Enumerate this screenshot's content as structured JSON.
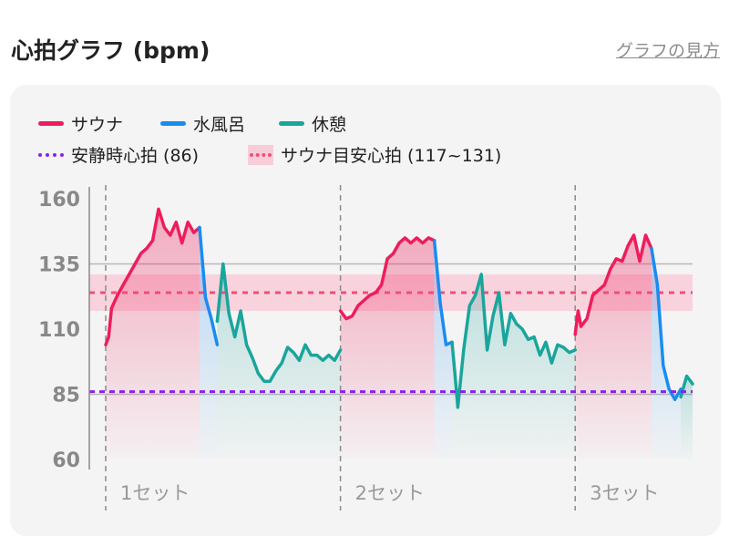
{
  "header": {
    "title": "心拍グラフ (bpm)",
    "help_link": "グラフの見方"
  },
  "colors": {
    "sauna": "#ee1d5b",
    "cold_bath": "#1a8cf0",
    "rest": "#1aa59c",
    "resting_hr": "#8a1ff0",
    "target_line": "#ee4f7a",
    "target_band": "#f8cdd8",
    "card_bg": "#f4f4f4",
    "axis": "#888888",
    "gridline": "#b8b8b8"
  },
  "legend": {
    "sauna": "サウナ",
    "cold_bath": "水風呂",
    "rest": "休憩",
    "resting_hr": "安静時心拍 (86)",
    "target_band": "サウナ目安心拍 (117~131)"
  },
  "chart_data": {
    "type": "line",
    "title": "心拍グラフ (bpm)",
    "ylim": [
      55,
      165
    ],
    "yticks": [
      160,
      135,
      110,
      85,
      60
    ],
    "gridlines": [
      135,
      85
    ],
    "x_range": [
      0,
      100
    ],
    "set_dividers": [
      0,
      40,
      80
    ],
    "set_labels": [
      {
        "label": "1セット",
        "x": 0
      },
      {
        "label": "2セット",
        "x": 40
      },
      {
        "label": "3セット",
        "x": 80
      }
    ],
    "resting_hr": 86,
    "target_band": [
      117,
      131
    ],
    "target_line": 124,
    "series": [
      {
        "name": "サウナ",
        "phase": "sauna",
        "x": [
          0,
          0.5,
          1,
          2,
          3,
          4,
          5,
          6,
          7,
          8,
          9,
          10,
          11,
          12,
          13,
          14,
          15,
          16
        ],
        "y": [
          104,
          107,
          118,
          123,
          127,
          131,
          135,
          139,
          141,
          144,
          156,
          149,
          146,
          151,
          143,
          151,
          147,
          149
        ]
      },
      {
        "name": "水風呂",
        "phase": "cold_bath",
        "x": [
          16,
          17,
          18,
          19
        ],
        "y": [
          149,
          122,
          114,
          104
        ]
      },
      {
        "name": "休憩",
        "phase": "rest",
        "x": [
          19,
          20,
          21,
          22,
          23,
          24,
          25,
          26,
          27,
          28,
          29,
          30,
          31,
          32,
          33,
          34,
          35,
          36,
          37,
          38,
          39,
          40
        ],
        "y": [
          113,
          135,
          116,
          107,
          117,
          104,
          99,
          93,
          90,
          90,
          94,
          97,
          103,
          101,
          98,
          104,
          100,
          100,
          98,
          100,
          98,
          102
        ]
      },
      {
        "name": "サウナ",
        "phase": "sauna",
        "x": [
          40,
          41,
          42,
          43,
          44,
          45,
          46,
          47,
          48,
          49,
          50,
          51,
          52,
          53,
          54,
          55,
          56
        ],
        "y": [
          117,
          114,
          115,
          119,
          121,
          123,
          124,
          127,
          137,
          139,
          143,
          145,
          143,
          145,
          143,
          145,
          144
        ]
      },
      {
        "name": "水風呂",
        "phase": "cold_bath",
        "x": [
          56,
          57,
          58,
          59
        ],
        "y": [
          144,
          120,
          104,
          105
        ]
      },
      {
        "name": "休憩",
        "phase": "rest",
        "x": [
          59,
          59.5,
          60,
          61,
          62,
          63,
          64,
          65,
          66,
          67,
          68,
          69,
          70,
          71,
          72,
          73,
          74,
          75,
          76,
          77,
          78,
          79,
          80
        ],
        "y": [
          105,
          93,
          80,
          102,
          119,
          123,
          131,
          102,
          115,
          124,
          104,
          116,
          112,
          110,
          106,
          107,
          100,
          105,
          97,
          104,
          103,
          101,
          102
        ]
      },
      {
        "name": "サウナ",
        "phase": "sauna",
        "x": [
          80,
          80.5,
          81,
          82,
          83,
          84,
          85,
          86,
          87,
          88,
          89,
          90,
          91,
          92,
          93
        ],
        "y": [
          108,
          117,
          111,
          114,
          123,
          125,
          127,
          133,
          137,
          136,
          142,
          146,
          136,
          146,
          141
        ]
      },
      {
        "name": "水風呂",
        "phase": "cold_bath",
        "x": [
          93,
          94,
          95,
          96,
          97,
          98
        ],
        "y": [
          141,
          127,
          96,
          87,
          83,
          87
        ]
      },
      {
        "name": "休憩",
        "phase": "rest",
        "x": [
          98,
          99,
          100
        ],
        "y": [
          84,
          92,
          89
        ]
      }
    ]
  }
}
